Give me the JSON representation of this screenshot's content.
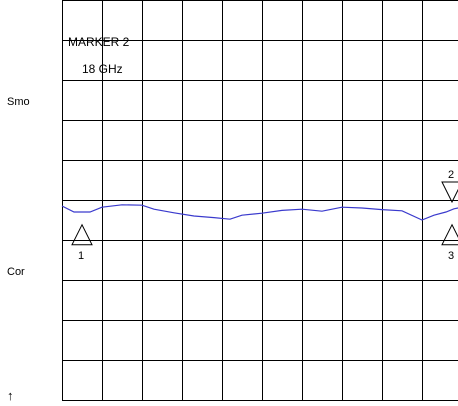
{
  "side_labels": {
    "smo": "Smo",
    "cor": "Cor",
    "arrow": "↑"
  },
  "marker_readout": {
    "name": "MARKER 2",
    "value": "18 GHz"
  },
  "markers": [
    {
      "label": "1",
      "x": 0.5,
      "y": 5.62,
      "orientation": "up"
    },
    {
      "label": "2",
      "x": 9.75,
      "y": 5.05,
      "orientation": "down"
    },
    {
      "label": "3",
      "x": 9.75,
      "y": 5.62,
      "orientation": "up"
    }
  ],
  "colors": {
    "grid": "#000000",
    "trace": "#3a3acd",
    "text": "#000000"
  },
  "chart_data": {
    "type": "line",
    "title": "",
    "xlabel": "",
    "ylabel": "",
    "grid": true,
    "xlim": [
      0,
      10
    ],
    "ylim": [
      0,
      10
    ],
    "series": [
      {
        "x": [
          0.0,
          0.3,
          0.7,
          1.0,
          1.5,
          2.0,
          2.3,
          2.8,
          3.3,
          3.8,
          4.2,
          4.5,
          5.0,
          5.5,
          6.0,
          6.5,
          7.0,
          7.5,
          8.0,
          8.5,
          9.0,
          9.3,
          9.6,
          9.8,
          10.0
        ],
        "y": [
          5.15,
          5.3,
          5.3,
          5.18,
          5.12,
          5.13,
          5.23,
          5.32,
          5.4,
          5.44,
          5.48,
          5.38,
          5.33,
          5.26,
          5.23,
          5.28,
          5.18,
          5.2,
          5.24,
          5.27,
          5.5,
          5.38,
          5.3,
          5.22,
          5.18
        ]
      }
    ]
  }
}
